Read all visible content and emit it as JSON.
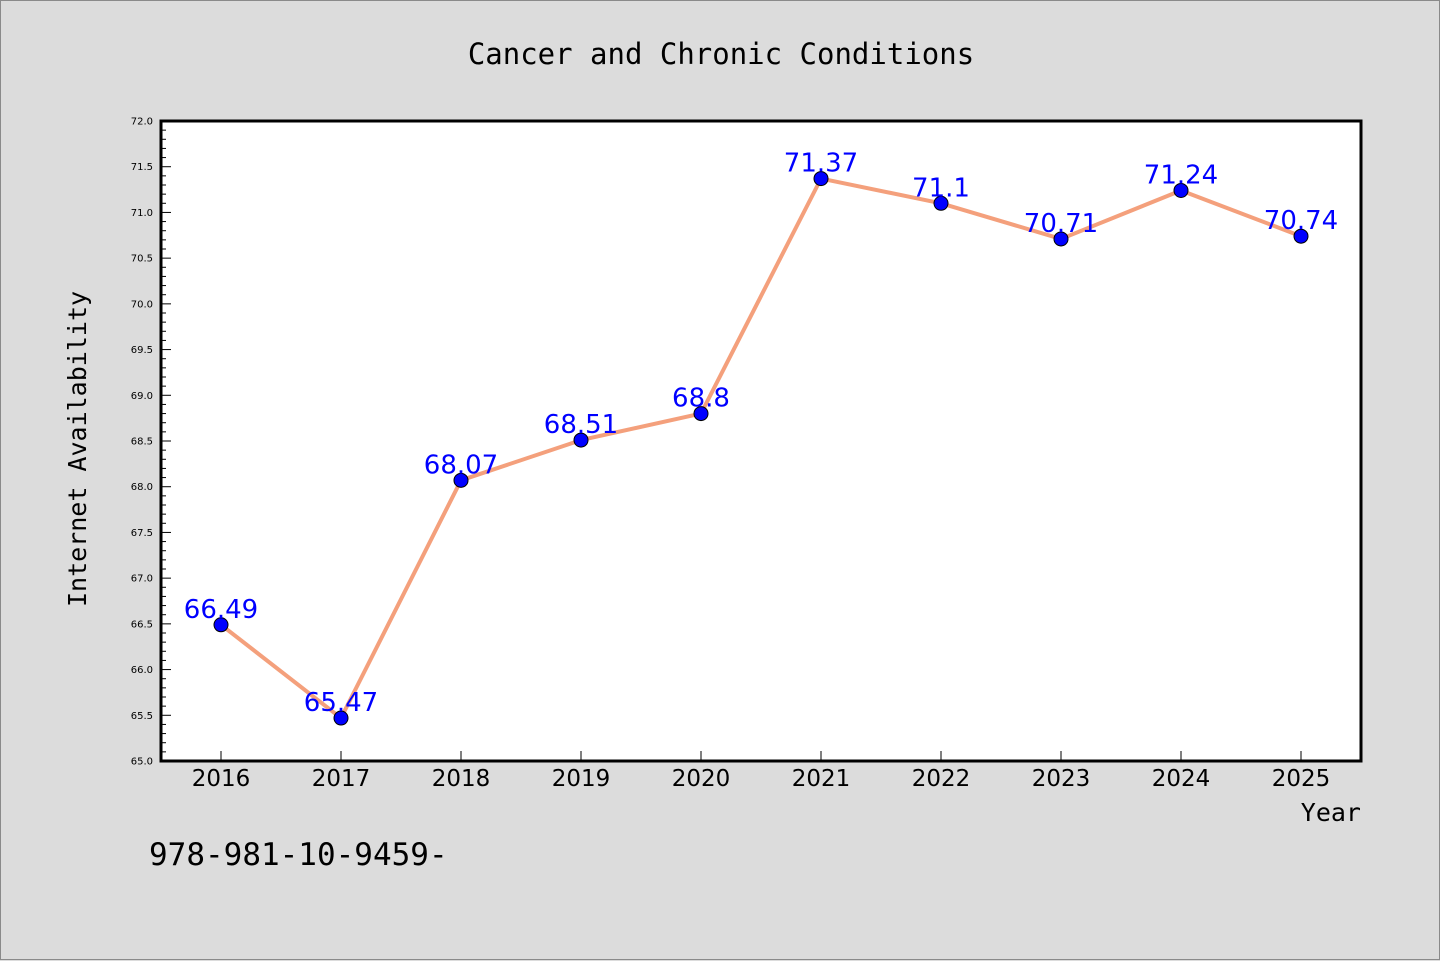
{
  "colors": {
    "background": "#dcdcdc",
    "plot_background": "#ffffff",
    "line": "#f4a07c",
    "marker": "#0000ff",
    "data_label": "#0000ff"
  },
  "footnote": "978-981-10-9459-",
  "chart_data": {
    "type": "line",
    "title": "Cancer and Chronic Conditions",
    "xlabel": "Year",
    "ylabel": "Internet Availability",
    "categories": [
      "2016",
      "2017",
      "2018",
      "2019",
      "2020",
      "2021",
      "2022",
      "2023",
      "2024",
      "2025"
    ],
    "values": [
      66.49,
      65.47,
      68.07,
      68.51,
      68.8,
      71.37,
      71.1,
      70.71,
      71.24,
      70.74
    ],
    "data_labels": [
      "66.49",
      "65.47",
      "68.07",
      "68.51",
      "68.8",
      "71.37",
      "71.1",
      "70.71",
      "71.24",
      "70.74"
    ],
    "ylim": [
      65.0,
      72.0
    ],
    "yticks": [
      "65.0",
      "65.5",
      "66.0",
      "66.5",
      "67.0",
      "67.5",
      "68.0",
      "68.5",
      "69.0",
      "69.5",
      "70.0",
      "70.5",
      "71.0",
      "71.5",
      "72.0"
    ],
    "grid": false,
    "markers": "circle"
  }
}
